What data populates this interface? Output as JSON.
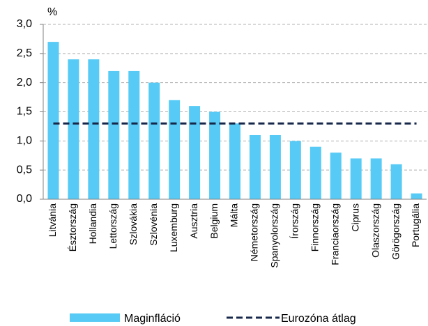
{
  "chart_data": {
    "type": "bar",
    "y_axis_label": "%",
    "categories": [
      "Litvánia",
      "Észtország",
      "Hollandia",
      "Lettország",
      "Szlovákia",
      "Szlovénia",
      "Luxemburg",
      "Ausztria",
      "Belgium",
      "Málta",
      "Németország",
      "Spanyolország",
      "Írország",
      "Finnország",
      "Franciaország",
      "Ciprus",
      "Olaszország",
      "Görögország",
      "Portugália"
    ],
    "series": [
      {
        "name": "Maginfláció",
        "type": "bar",
        "color": "#57cbf5",
        "values": [
          2.7,
          2.4,
          2.4,
          2.2,
          2.2,
          2.0,
          1.7,
          1.6,
          1.5,
          1.3,
          1.1,
          1.1,
          1.0,
          0.9,
          0.8,
          0.7,
          0.7,
          0.6,
          0.1
        ]
      },
      {
        "name": "Eurozóna átlag",
        "type": "line",
        "dashed": true,
        "color": "#17274a",
        "values": [
          1.3,
          1.3,
          1.3,
          1.3,
          1.3,
          1.3,
          1.3,
          1.3,
          1.3,
          1.3,
          1.3,
          1.3,
          1.3,
          1.3,
          1.3,
          1.3,
          1.3,
          1.3,
          1.3
        ]
      }
    ],
    "ylim": [
      0,
      3
    ],
    "yticks": [
      {
        "value": 0,
        "label": "0,0"
      },
      {
        "value": 0.5,
        "label": "0,5"
      },
      {
        "value": 1,
        "label": "1,0"
      },
      {
        "value": 1.5,
        "label": "1,5"
      },
      {
        "value": 2,
        "label": "2,0"
      },
      {
        "value": 2.5,
        "label": "2,5"
      },
      {
        "value": 3,
        "label": "3,0"
      }
    ],
    "grid": true,
    "legend": "bottom"
  }
}
